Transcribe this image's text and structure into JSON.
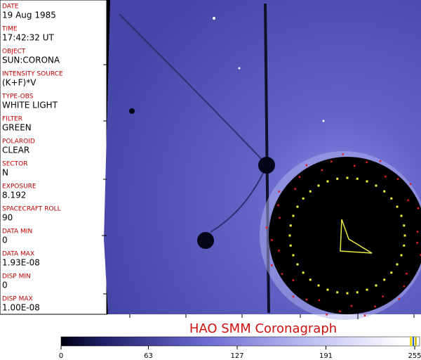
{
  "fields": [
    {
      "label": "DATE",
      "value": "19 Aug 1985"
    },
    {
      "label": "TIME",
      "value": "17:42:32 UT"
    },
    {
      "label": "OBJECT",
      "value": "SUN:CORONA"
    },
    {
      "label": "INTENSITY SOURCE",
      "value": "(K+F)*V"
    },
    {
      "label": "TYPE-OBS",
      "value": "WHITE LIGHT"
    },
    {
      "label": "FILTER",
      "value": "GREEN"
    },
    {
      "label": "POLAROID",
      "value": "CLEAR"
    },
    {
      "label": "SECTOR",
      "value": "N"
    },
    {
      "label": "EXPOSURE",
      "value": "8.192"
    },
    {
      "label": "SPACECRAFT ROLL",
      "value": "90"
    },
    {
      "label": "DATA MIN",
      "value": "0"
    },
    {
      "label": "DATA MAX",
      "value": "1.93E-08"
    },
    {
      "label": "DISP MIN",
      "value": "0"
    },
    {
      "label": "DISP MAX",
      "value": "1.00E-08"
    }
  ],
  "title": "HAO  SMM Coronagraph",
  "colorbar": {
    "range": [
      0,
      255
    ],
    "ticks": [
      0,
      63,
      127,
      191,
      255
    ]
  }
}
